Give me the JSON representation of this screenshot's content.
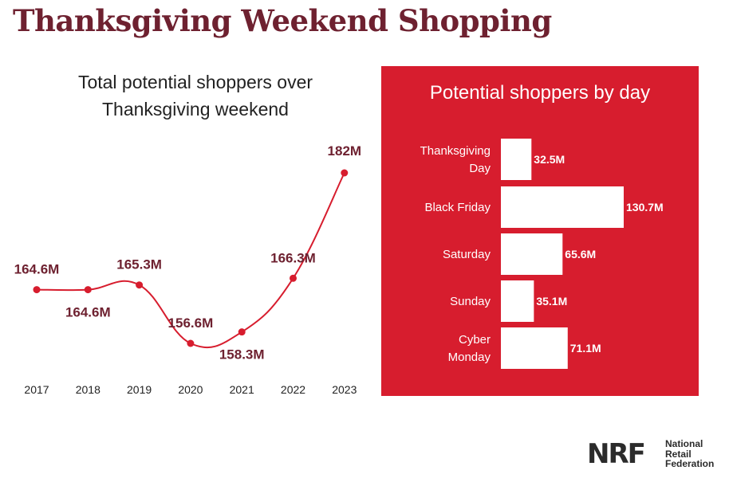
{
  "title": "Thanksgiving Weekend Shopping",
  "chart_data": [
    {
      "type": "line",
      "title": "Total potential shoppers over Thanksgiving weekend",
      "x": [
        "2017",
        "2018",
        "2019",
        "2020",
        "2021",
        "2022",
        "2023"
      ],
      "values": [
        164.6,
        164.6,
        165.3,
        156.6,
        158.3,
        166.3,
        182
      ],
      "labels": [
        "164.6M",
        "164.6M",
        "165.3M",
        "156.6M",
        "158.3M",
        "166.3M",
        "182M"
      ],
      "colors": {
        "line": "#d71d2e",
        "label": "#6e2130"
      }
    },
    {
      "type": "bar",
      "orientation": "horizontal",
      "title": "Potential shoppers by day",
      "categories": [
        "Thanksgiving Day",
        "Black Friday",
        "Saturday",
        "Sunday",
        "Cyber Monday"
      ],
      "values": [
        32.5,
        130.7,
        65.6,
        35.1,
        71.1
      ],
      "labels": [
        "32.5M",
        "130.7M",
        "65.6M",
        "35.1M",
        "71.1M"
      ],
      "colors": {
        "background": "#d71d2e",
        "bar": "#ffffff",
        "text": "#ffffff"
      }
    }
  ],
  "logo": {
    "mark": "NRF",
    "lines": [
      "National",
      "Retail",
      "Federation"
    ]
  }
}
